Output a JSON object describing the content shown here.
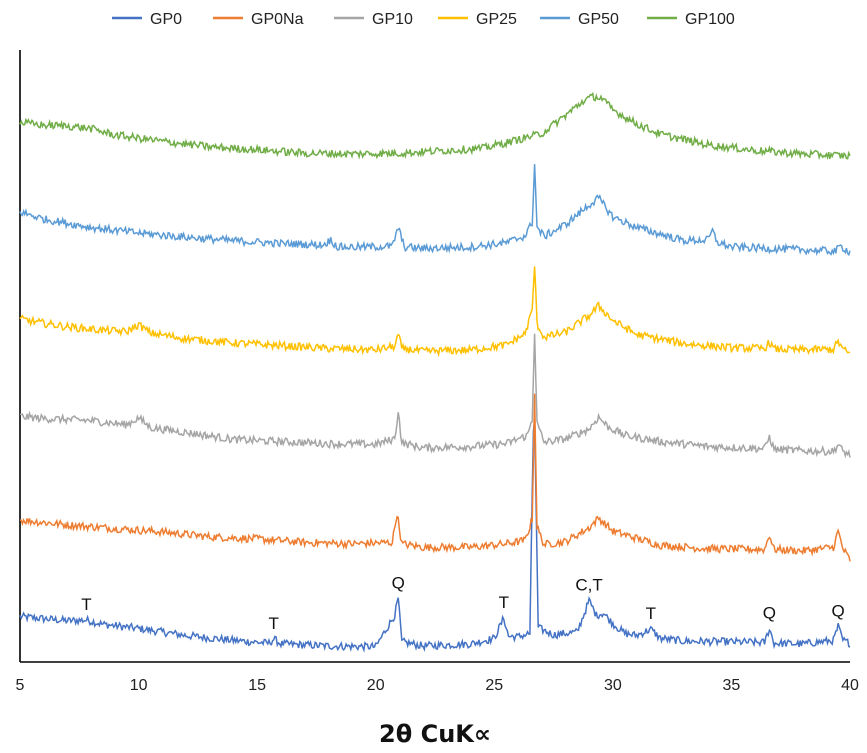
{
  "chart_data": {
    "type": "line",
    "title": "",
    "xlabel": "2θ CuK∝",
    "ylabel": "",
    "xlim": [
      5,
      40
    ],
    "y_ticks_shown": false,
    "grid": false,
    "legend_position": "top",
    "x_ticks": [
      "5",
      "10",
      "15",
      "20",
      "25",
      "30",
      "35",
      "40"
    ],
    "series": [
      {
        "name": "GP0",
        "color": "#4472C4",
        "offset": 0,
        "x": [
          5,
          6,
          7,
          7.8,
          8.5,
          10,
          12,
          14,
          15.5,
          15.7,
          16,
          18,
          20,
          20.8,
          20.95,
          21.1,
          22,
          24,
          25,
          25.4,
          25.6,
          26,
          26.5,
          26.68,
          26.85,
          27.5,
          28.5,
          29.0,
          29.3,
          29.6,
          30,
          30.5,
          31,
          31.6,
          32,
          33,
          35,
          36.4,
          36.6,
          36.8,
          38,
          39.3,
          39.5,
          39.7,
          40
        ],
        "y": [
          6.2,
          5.9,
          5.6,
          5.7,
          5.1,
          4.5,
          3.5,
          2.8,
          2.4,
          3.0,
          2.3,
          2.0,
          1.9,
          6.4,
          8.8,
          2.6,
          2.0,
          2.3,
          3.1,
          6.0,
          3.4,
          3.3,
          3.8,
          38.5,
          4.6,
          3.6,
          4.0,
          8.5,
          6.4,
          6.7,
          5.2,
          3.8,
          3.5,
          4.4,
          3.1,
          2.7,
          2.6,
          2.5,
          4.5,
          2.4,
          2.3,
          2.8,
          4.8,
          2.8,
          2.4
        ],
        "peak_labels": [
          {
            "x": 7.8,
            "label": "T"
          },
          {
            "x": 15.7,
            "label": "T"
          },
          {
            "x": 20.95,
            "label": "Q"
          },
          {
            "x": 25.4,
            "label": "T"
          },
          {
            "x": 29.0,
            "label": "C,T"
          },
          {
            "x": 31.6,
            "label": "T"
          },
          {
            "x": 36.6,
            "label": "Q"
          },
          {
            "x": 39.5,
            "label": "Q"
          }
        ]
      },
      {
        "name": "GP0Na",
        "color": "#ED7D31",
        "offset": 14,
        "x": [
          5,
          7,
          9,
          11,
          13,
          15,
          17,
          19,
          20.7,
          20.9,
          21.1,
          22,
          24,
          25.5,
          26.3,
          26.6,
          26.7,
          26.8,
          27.1,
          28,
          29.0,
          29.4,
          30,
          31,
          32,
          34,
          36.4,
          36.6,
          36.8,
          38,
          39.3,
          39.5,
          39.7,
          40
        ],
        "y": [
          6.0,
          5.3,
          4.8,
          4.3,
          3.6,
          3.3,
          2.8,
          2.6,
          2.8,
          7.0,
          2.6,
          2.1,
          2.1,
          2.6,
          3.1,
          6.0,
          24.0,
          5.0,
          2.5,
          2.9,
          4.9,
          6.3,
          4.4,
          3.4,
          2.4,
          1.9,
          1.8,
          3.9,
          1.8,
          1.6,
          2.1,
          4.4,
          1.9,
          0.3
        ]
      },
      {
        "name": "GP10",
        "color": "#A5A5A5",
        "offset": 28,
        "x": [
          5,
          6,
          8,
          9.5,
          10,
          10.5,
          12,
          14,
          16,
          18,
          20,
          20.8,
          20.95,
          21.1,
          22,
          24,
          25.5,
          26.4,
          26.6,
          26.7,
          26.8,
          27.1,
          28,
          29.0,
          29.4,
          29.8,
          30.5,
          32,
          34,
          36.4,
          36.6,
          36.8,
          38,
          39.3,
          39.5,
          39.7,
          40
        ],
        "y": [
          6.8,
          6.5,
          6.2,
          5.6,
          6.6,
          5.2,
          4.5,
          3.5,
          3.2,
          2.9,
          2.8,
          3.6,
          7.6,
          3.0,
          2.3,
          2.5,
          2.9,
          4.1,
          6.4,
          19.0,
          5.8,
          3.1,
          3.6,
          5.0,
          6.7,
          5.3,
          4.1,
          3.2,
          2.5,
          2.2,
          3.9,
          2.1,
          1.9,
          1.8,
          2.8,
          1.8,
          1.3
        ]
      },
      {
        "name": "GP25",
        "color": "#FFC000",
        "offset": 42,
        "x": [
          5,
          6,
          7,
          8.5,
          9.5,
          10,
          10.5,
          12,
          14,
          16,
          18,
          20,
          20.8,
          20.95,
          21.1,
          22,
          24,
          25.5,
          26.3,
          26.6,
          26.7,
          26.8,
          27.1,
          28,
          29.0,
          29.4,
          30,
          31,
          33,
          35,
          36.4,
          36.6,
          36.8,
          38,
          39.3,
          39.5,
          39.7,
          40
        ],
        "y": [
          6.7,
          6.1,
          5.6,
          5.1,
          4.9,
          5.9,
          4.7,
          3.9,
          3.3,
          2.9,
          2.5,
          2.3,
          2.8,
          4.5,
          2.5,
          2.1,
          2.3,
          3.0,
          4.6,
          8.0,
          14.5,
          6.0,
          4.1,
          4.8,
          7.2,
          8.6,
          6.5,
          4.5,
          3.2,
          2.6,
          2.5,
          3.4,
          2.4,
          2.3,
          2.4,
          3.5,
          2.4,
          1.7
        ]
      },
      {
        "name": "GP50",
        "color": "#5B9BD5",
        "offset": 56,
        "x": [
          5,
          6,
          7,
          8,
          10,
          12,
          14,
          16,
          17.8,
          18.1,
          18.4,
          19.5,
          20.7,
          20.95,
          21.2,
          22,
          24,
          25.5,
          26.3,
          26.6,
          26.7,
          26.8,
          27.1,
          28,
          29.0,
          29.4,
          30,
          31,
          33,
          34.0,
          34.2,
          34.4,
          35,
          36.5,
          38,
          39.4,
          39.6,
          40
        ],
        "y": [
          8.0,
          7.0,
          6.4,
          5.8,
          5.0,
          4.4,
          3.9,
          3.5,
          3.3,
          4.0,
          3.0,
          3.0,
          3.1,
          5.8,
          3.0,
          2.8,
          3.0,
          3.6,
          4.6,
          6.5,
          15.0,
          5.8,
          4.5,
          6.2,
          9.0,
          10.0,
          7.3,
          5.8,
          3.9,
          4.0,
          5.3,
          3.7,
          3.0,
          2.8,
          2.6,
          2.4,
          3.1,
          2.3
        ]
      },
      {
        "name": "GP100",
        "color": "#70AD47",
        "offset": 70,
        "x": [
          5,
          6,
          7,
          8,
          9,
          11,
          13,
          15,
          17,
          19,
          21,
          23,
          24.5,
          25.5,
          26.3,
          27,
          28,
          28.8,
          29.2,
          29.5,
          30,
          31,
          32,
          34,
          36,
          38,
          40
        ],
        "y": [
          6.8,
          6.4,
          6.3,
          5.9,
          5.0,
          4.1,
          3.3,
          2.9,
          2.4,
          2.3,
          2.4,
          2.8,
          3.1,
          3.9,
          4.6,
          5.2,
          7.8,
          10.0,
          10.5,
          10.3,
          8.6,
          6.6,
          5.1,
          3.6,
          2.8,
          2.3,
          2.0
        ]
      }
    ]
  }
}
